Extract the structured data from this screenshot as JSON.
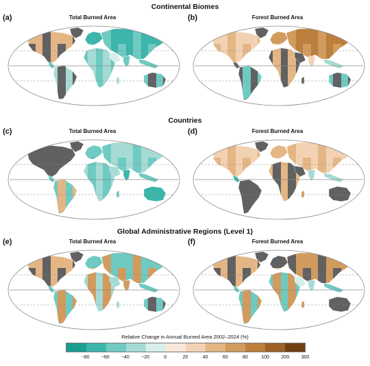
{
  "sections": [
    {
      "title": "Continental Biomes"
    },
    {
      "title": "Countries"
    },
    {
      "title": "Global Administrative Regions (Level 1)"
    }
  ],
  "panels": [
    {
      "letter": "(a)",
      "title": "Total Burned Area",
      "section": 0,
      "col": 0,
      "theme": "biome-total"
    },
    {
      "letter": "(b)",
      "title": "Forest Burned Area",
      "section": 0,
      "col": 1,
      "theme": "biome-forest"
    },
    {
      "letter": "(c)",
      "title": "Total Burned Area",
      "section": 1,
      "col": 0,
      "theme": "country-total"
    },
    {
      "letter": "(d)",
      "title": "Forest Burned Area",
      "section": 1,
      "col": 1,
      "theme": "country-forest"
    },
    {
      "letter": "(e)",
      "title": "Total Burned Area",
      "section": 2,
      "col": 0,
      "theme": "admin-total"
    },
    {
      "letter": "(f)",
      "title": "Forest Burned Area",
      "section": 2,
      "col": 1,
      "theme": "admin-forest"
    }
  ],
  "colorbar": {
    "title": "Relative Change in Annual Burned Area 2002–2024 (%)",
    "tick_labels": [
      "−80",
      "−60",
      "−40",
      "−20",
      "0",
      "20",
      "40",
      "60",
      "80",
      "100",
      "200",
      "300"
    ],
    "colors": [
      "#1a9e8f",
      "#3cb5aa",
      "#6fcac1",
      "#a5dbd4",
      "#d6efeb",
      "#fbe8da",
      "#f2d2b3",
      "#e4b685",
      "#d29b5e",
      "#bc7f3c",
      "#9e6128",
      "#714012"
    ]
  },
  "colors": {
    "no_data": "#616161",
    "ocean": "#ffffff",
    "globe_outline": "#8a8a8a",
    "equator_line": "#8a8a8a",
    "tropics_line": "#8a8a8a"
  }
}
